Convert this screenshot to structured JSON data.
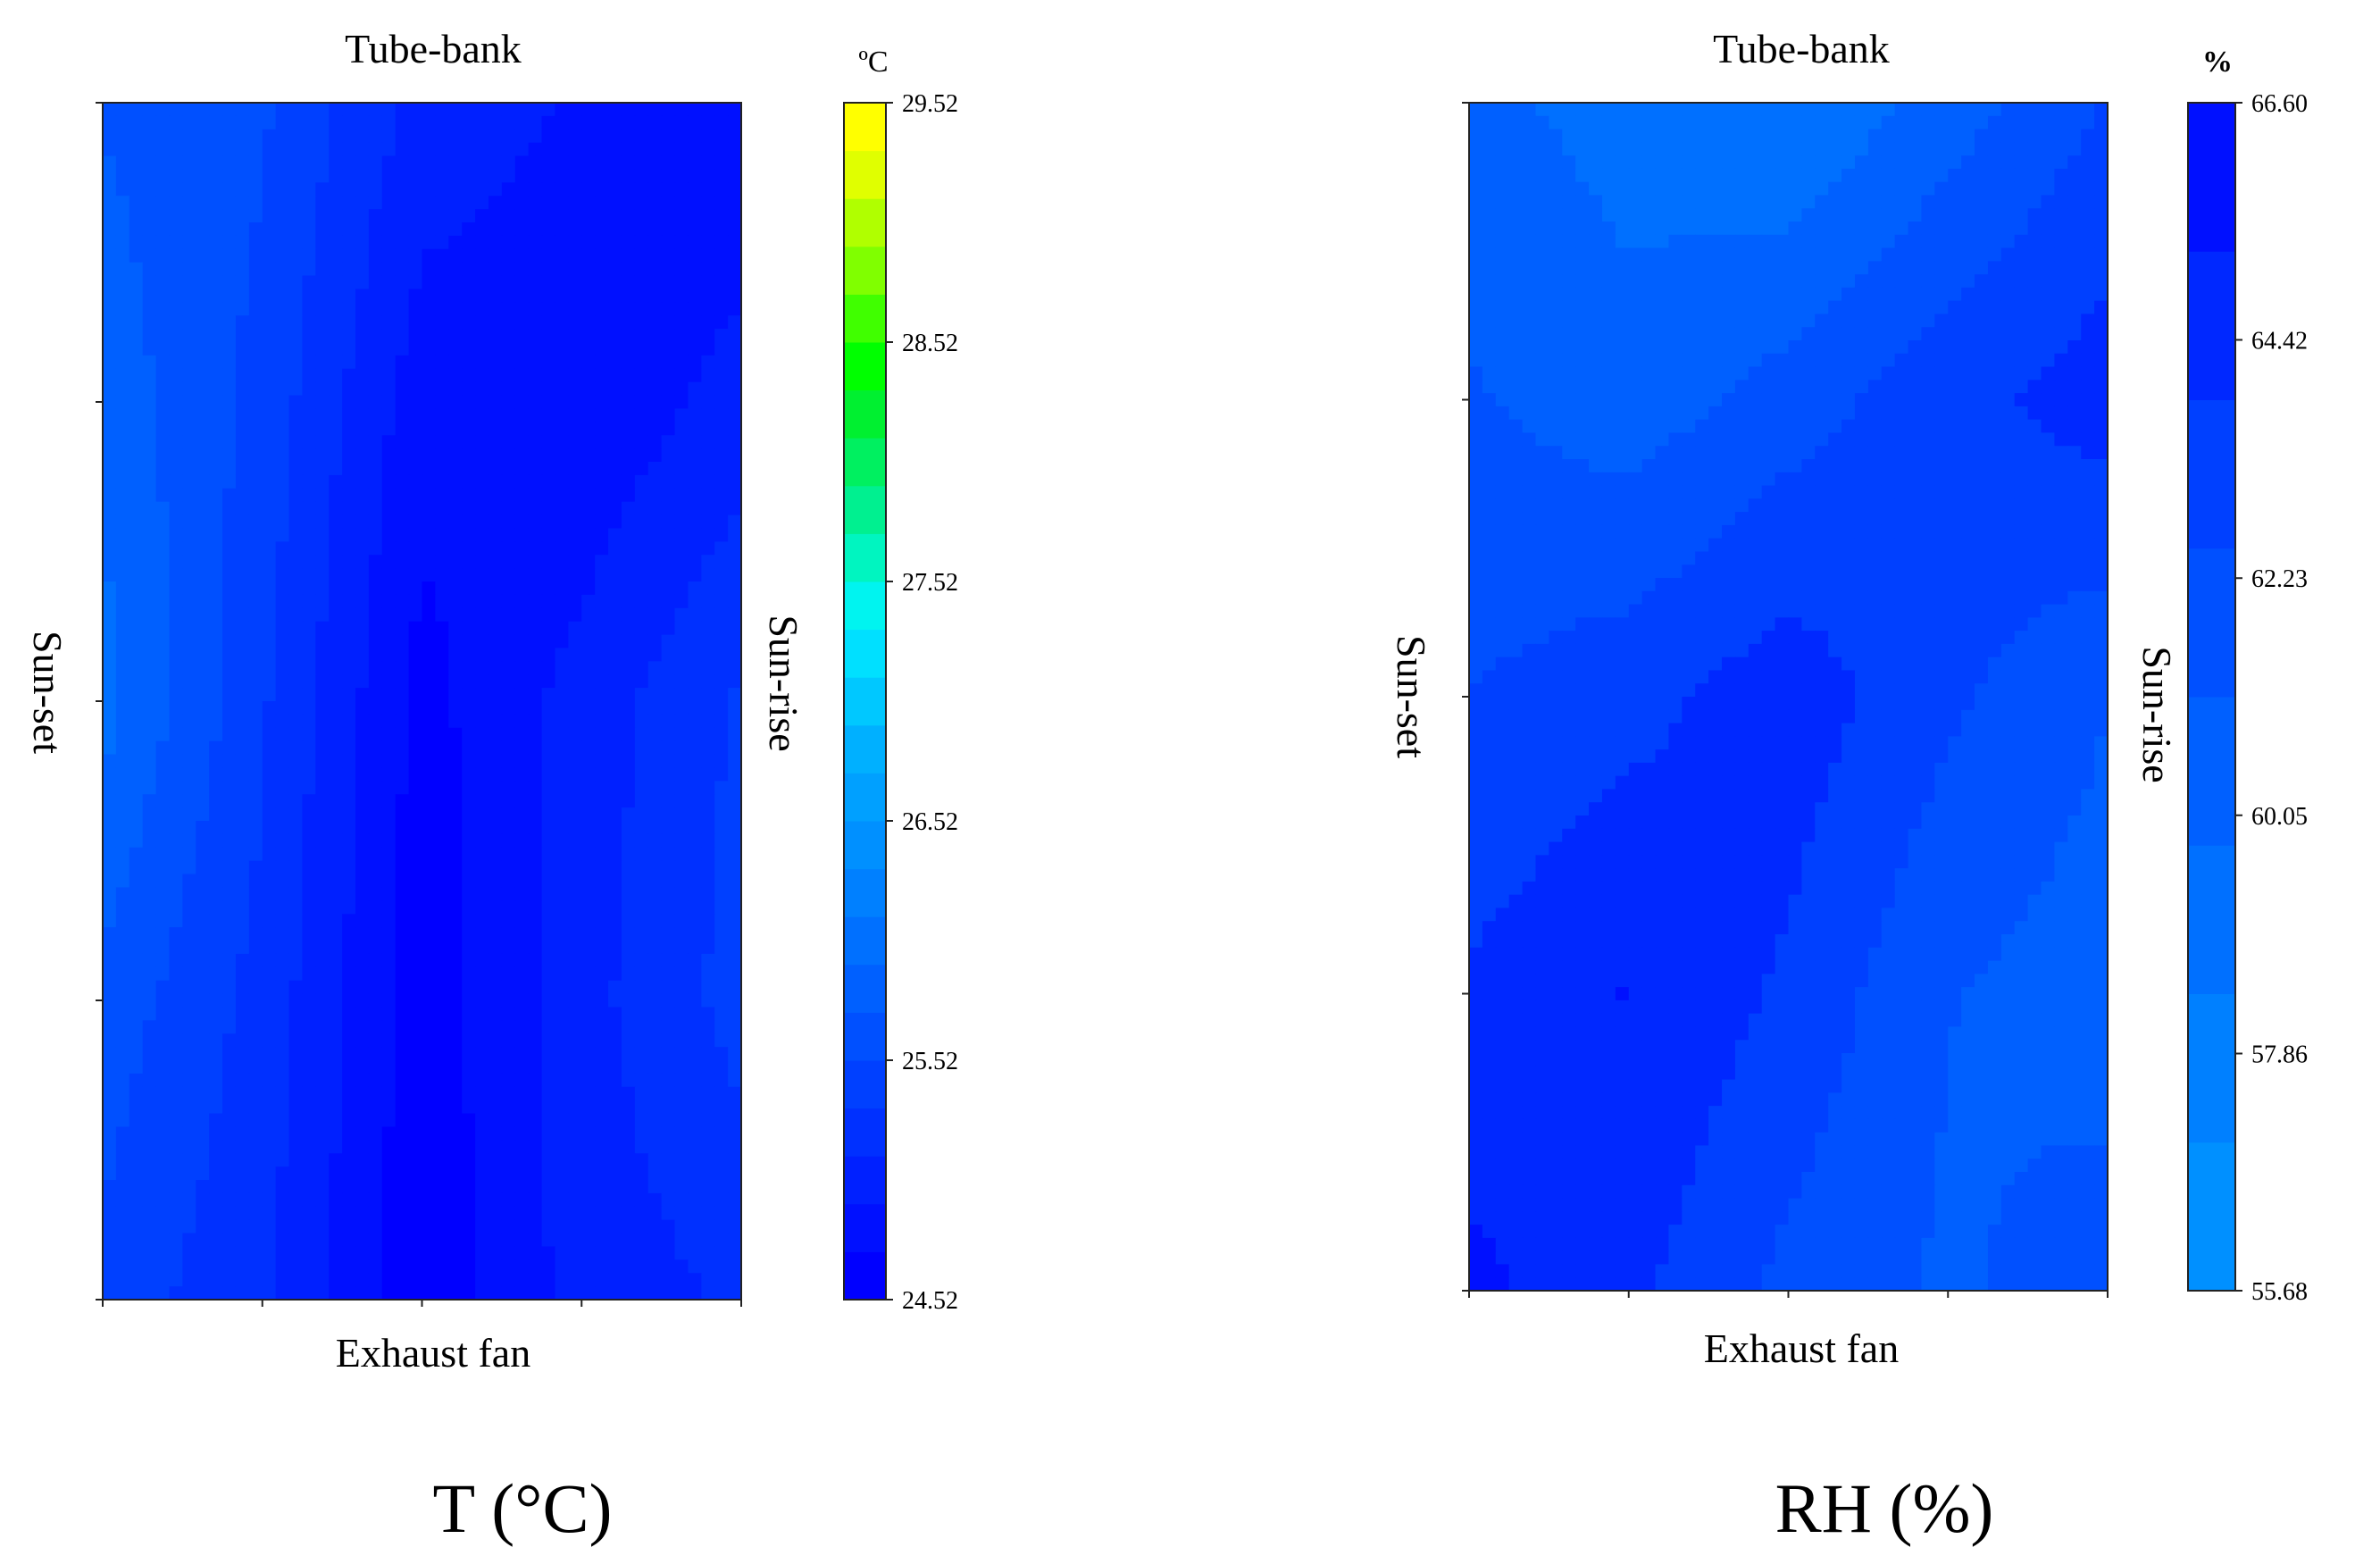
{
  "chart_data": [
    {
      "type": "heatmap",
      "top_label": "Tube-bank",
      "bottom_label": "Exhaust fan",
      "left_label": "Sun-set",
      "right_label": "Sun-rise",
      "caption": "T (°C)",
      "colorbar": {
        "unit": "ºC",
        "min": 24.52,
        "max": 29.52,
        "tick_labels": [
          "29.52",
          "28.52",
          "27.52",
          "26.52",
          "25.52",
          "24.52"
        ],
        "levels": 25,
        "colors": [
          "#0000ff",
          "#0010ff",
          "#0020ff",
          "#0030ff",
          "#0040ff",
          "#0050ff",
          "#0060ff",
          "#0070ff",
          "#0080ff",
          "#0090ff",
          "#00a0ff",
          "#00b0ff",
          "#00c8ff",
          "#00e0ff",
          "#00f4f0",
          "#00f5c0",
          "#00f090",
          "#00f060",
          "#00f030",
          "#00ff00",
          "#40ff00",
          "#80ff00",
          "#b0ff00",
          "#e0ff00",
          "#ffff00"
        ]
      },
      "field": {
        "rows": [
          "top",
          "upper",
          "middle",
          "lower",
          "bottom"
        ],
        "cols": 5,
        "values": [
          [
            25.7,
            25.55,
            25.05,
            24.9,
            24.75
          ],
          [
            25.85,
            25.45,
            24.8,
            24.75,
            25.0
          ],
          [
            26.0,
            25.35,
            24.65,
            25.0,
            25.35
          ],
          [
            25.65,
            25.25,
            24.6,
            25.05,
            25.4
          ],
          [
            25.45,
            25.15,
            24.58,
            25.0,
            25.15
          ]
        ]
      }
    },
    {
      "type": "heatmap",
      "top_label": "Tube-bank",
      "bottom_label": "Exhaust fan",
      "left_label": "Sun-set",
      "right_label": "Sun-rise",
      "caption": "RH (%)",
      "colorbar": {
        "unit": "%",
        "min": 55.68,
        "max": 66.6,
        "tick_labels": [
          "66.60",
          "64.42",
          "62.23",
          "60.05",
          "57.86",
          "55.68"
        ],
        "levels": 8,
        "colors": [
          "#0090ff",
          "#0080ff",
          "#0070ff",
          "#0060ff",
          "#0050ff",
          "#0040ff",
          "#0028ff",
          "#0010ff"
        ]
      },
      "field": {
        "rows": [
          "top",
          "upper",
          "middle",
          "lower",
          "bottom"
        ],
        "cols": 5,
        "values": [
          [
            60.2,
            59.2,
            58.3,
            60.4,
            62.6
          ],
          [
            61.3,
            60.3,
            61.8,
            63.4,
            64.6
          ],
          [
            62.5,
            63.4,
            64.7,
            62.8,
            61.2
          ],
          [
            64.1,
            65.3,
            63.6,
            61.2,
            60.4
          ],
          [
            65.6,
            64.2,
            62.1,
            60.9,
            61.9
          ]
        ]
      }
    }
  ]
}
